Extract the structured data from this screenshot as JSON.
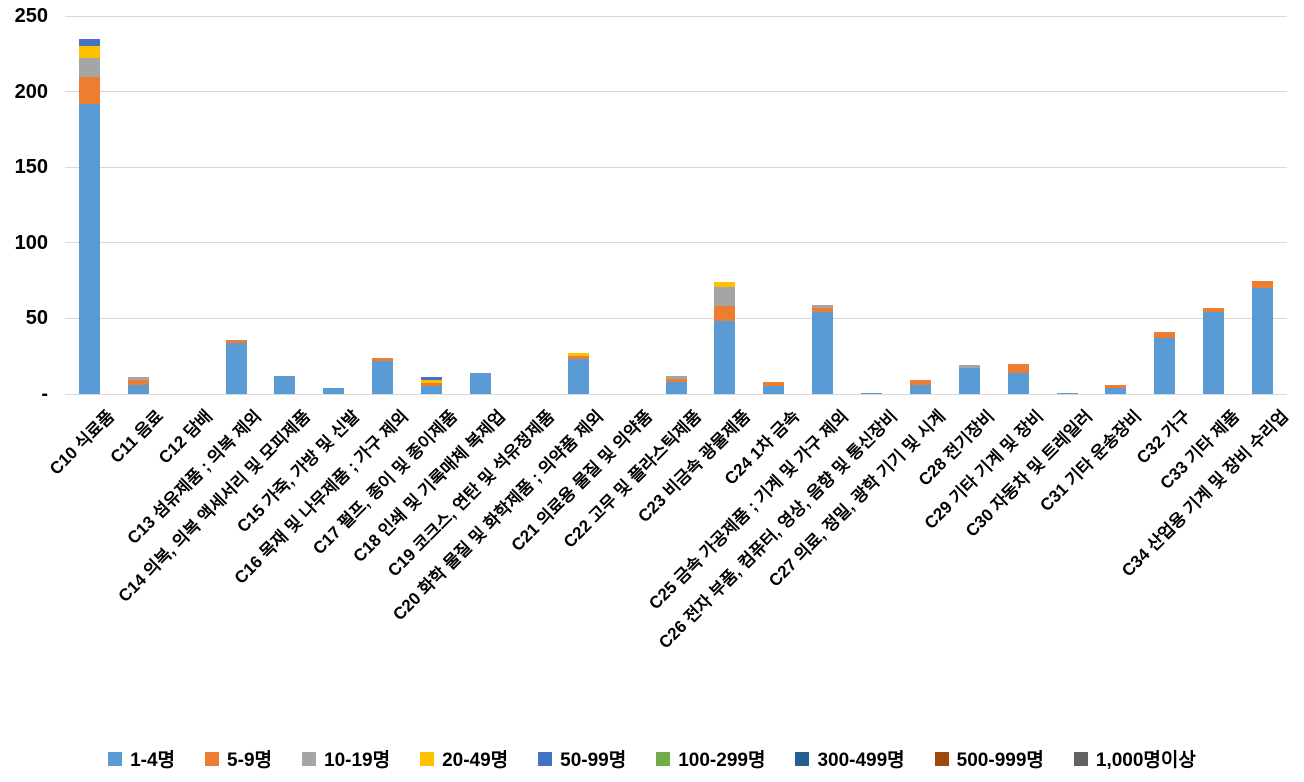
{
  "chart_data": {
    "type": "bar",
    "stacked": true,
    "title": "",
    "xlabel": "",
    "ylabel": "",
    "ylim": [
      0,
      250
    ],
    "ytick_step": 50,
    "yticks_top_to_bottom": [
      "250",
      "200",
      "150",
      "100",
      "50",
      "-"
    ],
    "grid": true,
    "legend_position": "bottom",
    "categories": [
      "C10 식료품",
      "C11 음료",
      "C12 담배",
      "C13 섬유제품 ; 의복 제외",
      "C14 의복, 의복 액세서리 및 모피제품",
      "C15 가죽, 가방 및 신발",
      "C16 목재 및 나무제품 ; 가구 제외",
      "C17 펄프, 종이 및 종이제품",
      "C18 인쇄 및 기록매체 복제업",
      "C19 코크스, 연탄 및 석유정제품",
      "C20 화학 물질 및 화학제품 ; 의약품 제외",
      "C21 의료용 물질 및 의약품",
      "C22 고무 및 플라스틱제품",
      "C23 비금속 광물제품",
      "C24 1차 금속",
      "C25 금속 가공제품 ; 기계 및 가구 제외",
      "C26 전자 부품, 컴퓨터, 영상, 음향 및 통신장비",
      "C27 의료, 정밀, 광학 기기 및 시계",
      "C28 전기장비",
      "C29 기타 기계 및 장비",
      "C30 자동차 및 트레일러",
      "C31 기타 운송장비",
      "C32 가구",
      "C33 기타 제품",
      "C34 산업용 기계 및 장비 수리업"
    ],
    "series": [
      {
        "name": "1-4명",
        "color": "#5B9BD5",
        "values": [
          192,
          6,
          0,
          34,
          12,
          4,
          22,
          5,
          14,
          0,
          23,
          0,
          8,
          48,
          5,
          54,
          1,
          6,
          17,
          14,
          1,
          4,
          37,
          54,
          70
        ]
      },
      {
        "name": "5-9명",
        "color": "#ED7D31",
        "values": [
          18,
          3,
          0,
          2,
          0,
          0,
          2,
          2,
          0,
          0,
          2,
          0,
          2,
          10,
          3,
          3,
          0,
          3,
          0,
          6,
          0,
          2,
          4,
          3,
          5
        ]
      },
      {
        "name": "10-19명",
        "color": "#A5A5A5",
        "values": [
          12,
          2,
          0,
          0,
          0,
          0,
          0,
          0,
          0,
          0,
          0,
          0,
          2,
          13,
          0,
          2,
          0,
          0,
          2,
          0,
          0,
          0,
          0,
          0,
          0
        ]
      },
      {
        "name": "20-49명",
        "color": "#FFC000",
        "values": [
          8,
          0,
          0,
          0,
          0,
          0,
          0,
          2,
          0,
          0,
          2,
          0,
          0,
          3,
          0,
          0,
          0,
          0,
          0,
          0,
          0,
          0,
          0,
          0,
          0
        ]
      },
      {
        "name": "50-99명",
        "color": "#4472C4",
        "values": [
          5,
          0,
          0,
          0,
          0,
          0,
          0,
          2,
          0,
          0,
          0,
          0,
          0,
          0,
          0,
          0,
          0,
          0,
          0,
          0,
          0,
          0,
          0,
          0,
          0
        ]
      },
      {
        "name": "100-299명",
        "color": "#70AD47",
        "values": [
          0,
          0,
          0,
          0,
          0,
          0,
          0,
          0,
          0,
          0,
          0,
          0,
          0,
          0,
          0,
          0,
          0,
          0,
          0,
          0,
          0,
          0,
          0,
          0,
          0
        ]
      },
      {
        "name": "300-499명",
        "color": "#255E91",
        "values": [
          0,
          0,
          0,
          0,
          0,
          0,
          0,
          0,
          0,
          0,
          0,
          0,
          0,
          0,
          0,
          0,
          0,
          0,
          0,
          0,
          0,
          0,
          0,
          0,
          0
        ]
      },
      {
        "name": "500-999명",
        "color": "#9E480E",
        "values": [
          0,
          0,
          0,
          0,
          0,
          0,
          0,
          0,
          0,
          0,
          0,
          0,
          0,
          0,
          0,
          0,
          0,
          0,
          0,
          0,
          0,
          0,
          0,
          0,
          0
        ]
      },
      {
        "name": "1,000명이상",
        "color": "#636363",
        "values": [
          0,
          0,
          0,
          0,
          0,
          0,
          0,
          0,
          0,
          0,
          0,
          0,
          0,
          0,
          0,
          0,
          0,
          0,
          0,
          0,
          0,
          0,
          0,
          0,
          0
        ]
      }
    ]
  },
  "colors": {
    "background": "#FFFFFF",
    "gridline": "#D9D9D9",
    "axis_text": "#000000"
  }
}
